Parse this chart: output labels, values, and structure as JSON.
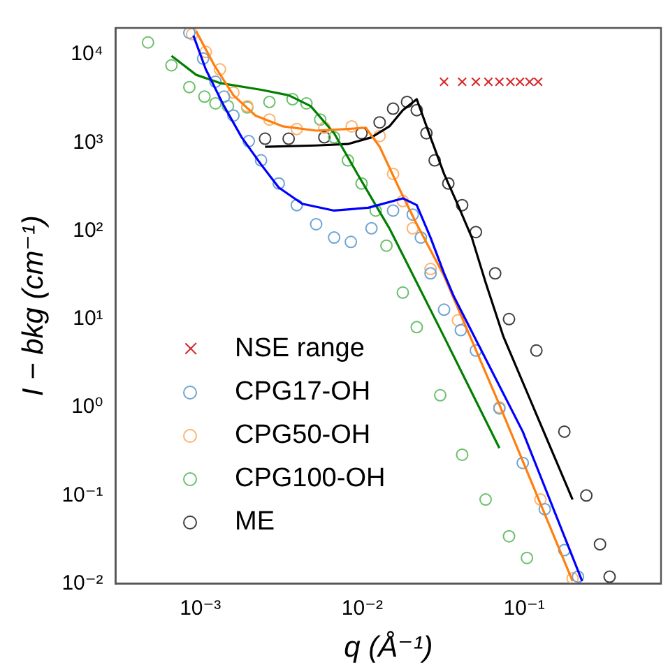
{
  "chart_data": {
    "type": "scatter",
    "xlabel": "q (Å⁻¹)",
    "ylabel": "I − bkg (cm⁻¹)",
    "log": "xy",
    "grid": false,
    "legend": "bottom left",
    "xlim": [
      0.00033,
      0.7
    ],
    "ylim": [
      0.01,
      20000
    ],
    "xticks": [
      {
        "value": 0.001,
        "label": "10⁻³"
      },
      {
        "value": 0.01,
        "label": "10⁻²"
      },
      {
        "value": 0.1,
        "label": "10⁻¹"
      }
    ],
    "yticks": [
      {
        "value": 0.01,
        "label": "10⁻²"
      },
      {
        "value": 0.1,
        "label": "10⁻¹"
      },
      {
        "value": 1,
        "label": "10⁰"
      },
      {
        "value": 10,
        "label": "10¹"
      },
      {
        "value": 100,
        "label": "10²"
      },
      {
        "value": 1000,
        "label": "10³"
      },
      {
        "value": 10000,
        "label": "10⁴"
      }
    ],
    "series": [
      {
        "name": "NSE range",
        "color": "#d62728",
        "marker": "cross",
        "x": [
          0.032,
          0.0414,
          0.0503,
          0.0601,
          0.0703,
          0.0822,
          0.0942,
          0.108,
          0.122
        ],
        "values": [
          4900,
          4900,
          4900,
          4900,
          4900,
          4900,
          4900,
          4900,
          4900
        ]
      },
      {
        "name": "CPG17-OH",
        "color": "#6fa4d3",
        "marker": "circle",
        "x": [
          0.000855,
          0.00104,
          0.00124,
          0.0014,
          0.0016,
          0.00199,
          0.00237,
          0.00305,
          0.00394,
          0.00519,
          0.0067,
          0.0085,
          0.0114,
          0.0155,
          0.0205,
          0.023,
          0.0264,
          0.032,
          0.0406,
          0.0503,
          0.0703,
          0.098,
          0.134,
          0.177,
          0.215
        ],
        "values": [
          17600,
          9000,
          4920,
          3330,
          2030,
          1040,
          631,
          345,
          196,
          119,
          84,
          75,
          107,
          170,
          153,
          84,
          33,
          12.8,
          7.5,
          4.4,
          0.97,
          0.234,
          0.07,
          0.024,
          0.012
        ]
      },
      {
        "name": "CPG50-OH",
        "color": "#ffb26e",
        "marker": "circle",
        "x": [
          0.000889,
          0.00108,
          0.00132,
          0.0016,
          0.00195,
          0.00267,
          0.00394,
          0.00583,
          0.0086,
          0.0128,
          0.0155,
          0.0178,
          0.0205,
          0.0264,
          0.039,
          0.0703,
          0.126,
          0.199
        ],
        "values": [
          17000,
          10700,
          6780,
          3700,
          2600,
          1830,
          1430,
          1480,
          1530,
          1190,
          443,
          218,
          107,
          37,
          9.7,
          1,
          0.09,
          0.0115
        ]
      },
      {
        "name": "CPG100-OH",
        "color": "#6cbf6c",
        "marker": "circle",
        "x": [
          0.000475,
          0.000663,
          0.000855,
          0.00106,
          0.00124,
          0.00148,
          0.00195,
          0.00267,
          0.00371,
          0.00452,
          0.0055,
          0.0067,
          0.00815,
          0.0099,
          0.0121,
          0.0141,
          0.0178,
          0.0217,
          0.0303,
          0.0414,
          0.0578,
          0.0806,
          0.104
        ],
        "values": [
          13700,
          7540,
          4270,
          3330,
          2790,
          2600,
          2510,
          2900,
          3110,
          2790,
          1830,
          1150,
          631,
          345,
          170,
          68,
          20,
          8.1,
          1.37,
          0.29,
          0.09,
          0.0345,
          0.0196
        ]
      },
      {
        "name": "ME",
        "color": "#404040",
        "marker": "circle",
        "x": [
          0.00251,
          0.00351,
          0.00583,
          0.0099,
          0.0128,
          0.0155,
          0.0189,
          0.0217,
          0.0249,
          0.028,
          0.034,
          0.0414,
          0.0503,
          0.0662,
          0.0806,
          0.119,
          0.177,
          0.242,
          0.294,
          0.337
        ],
        "values": [
          1110,
          1110,
          1150,
          1280,
          1700,
          2430,
          2900,
          2340,
          1280,
          631,
          345,
          196,
          97,
          33,
          10,
          4.4,
          0.53,
          0.1,
          0.028,
          0.012
        ]
      },
      {
        "type": "line",
        "color": "#0000ff",
        "marker": "none",
        "x": [
          0.000906,
          0.00108,
          0.0014,
          0.0018,
          0.00237,
          0.00305,
          0.00426,
          0.0067,
          0.0109,
          0.0178,
          0.0217,
          0.0264,
          0.032,
          0.0368,
          0.098,
          0.228
        ],
        "values": [
          16400,
          6780,
          2600,
          1150,
          567,
          310,
          203,
          170,
          183,
          234,
          196,
          84,
          33,
          18,
          0.53,
          0.0107
        ]
      },
      {
        "type": "line",
        "color": "#ff7f0e",
        "marker": "none",
        "x": [
          0.000942,
          0.00122,
          0.0016,
          0.00219,
          0.00324,
          0.00519,
          0.00815,
          0.0105,
          0.0128,
          0.0168,
          0.0217,
          0.032,
          0.0703,
          0.199
        ],
        "values": [
          18300,
          7540,
          3450,
          2030,
          1530,
          1370,
          1430,
          1480,
          900,
          310,
          119,
          31,
          1.07,
          0.0107
        ]
      },
      {
        "type": "line",
        "color": "#008000",
        "marker": "none",
        "x": [
          0.000663,
          0.000942,
          0.00132,
          0.00237,
          0.00351,
          0.0048,
          0.0067,
          0.00933,
          0.0121,
          0.0147,
          0.0217,
          0.032,
          0.0703
        ],
        "values": [
          9660,
          5880,
          4750,
          3980,
          3450,
          2600,
          1280,
          443,
          196,
          107,
          26,
          6.3,
          0.345
        ]
      },
      {
        "type": "line",
        "color": "#000000",
        "marker": "none",
        "x": [
          0.00251,
          0.00519,
          0.00815,
          0.0114,
          0.0147,
          0.0178,
          0.0217,
          0.0264,
          0.032,
          0.039,
          0.0475,
          0.0578,
          0.0745,
          0.199
        ],
        "values": [
          900,
          930,
          966,
          1150,
          1530,
          2340,
          3110,
          1150,
          443,
          196,
          84,
          26,
          6.3,
          0.09
        ]
      }
    ]
  }
}
